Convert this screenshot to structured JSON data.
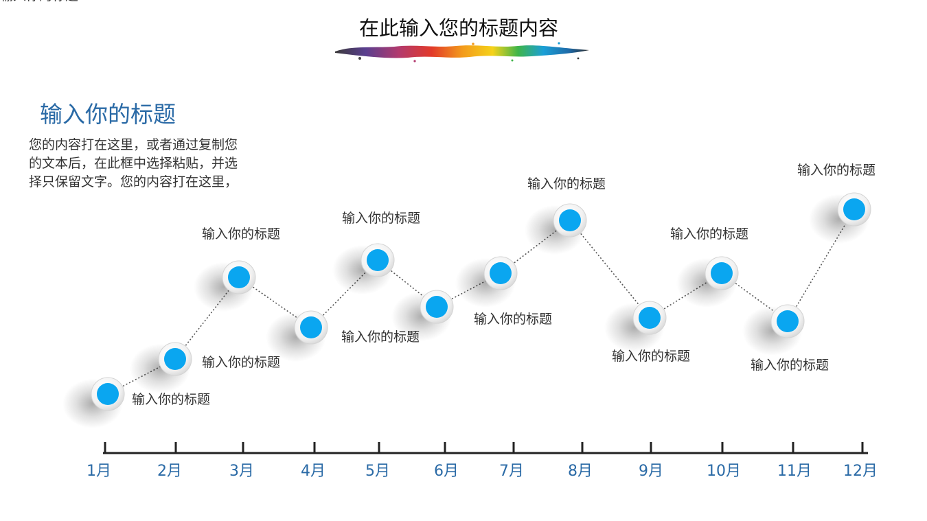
{
  "header": {
    "title": "在此输入您的标题内容"
  },
  "intro": {
    "heading": "输入你的标题",
    "lines": [
      "您的内容打在这里，或者通过复制您",
      "的文本后，在此框中选择粘贴，并选",
      "择只保留文字。您的内容打在这里，"
    ]
  },
  "colors": {
    "accent": "#0aa6f0",
    "heading": "#2a6aa6",
    "axis": "#222222"
  },
  "timeline": {
    "months": [
      "1月",
      "2月",
      "3月",
      "4月",
      "5月",
      "6月",
      "7月",
      "8月",
      "9月",
      "10月",
      "11月",
      "12月"
    ],
    "points": [
      {
        "label": "输入你的标题"
      },
      {
        "label": "输入你的标题"
      },
      {
        "label": "输入你的标题"
      },
      {
        "label": "输入你的标题"
      },
      {
        "label": "输入你的标题"
      },
      {
        "label": "输入你的标题"
      },
      {
        "label": "输入你的标题"
      },
      {
        "label": "输入你的标题"
      },
      {
        "label": "输入你的标题"
      },
      {
        "label": "输入你的标题"
      },
      {
        "label": "输入你的标题"
      },
      {
        "label": "输入你的标题"
      }
    ]
  }
}
